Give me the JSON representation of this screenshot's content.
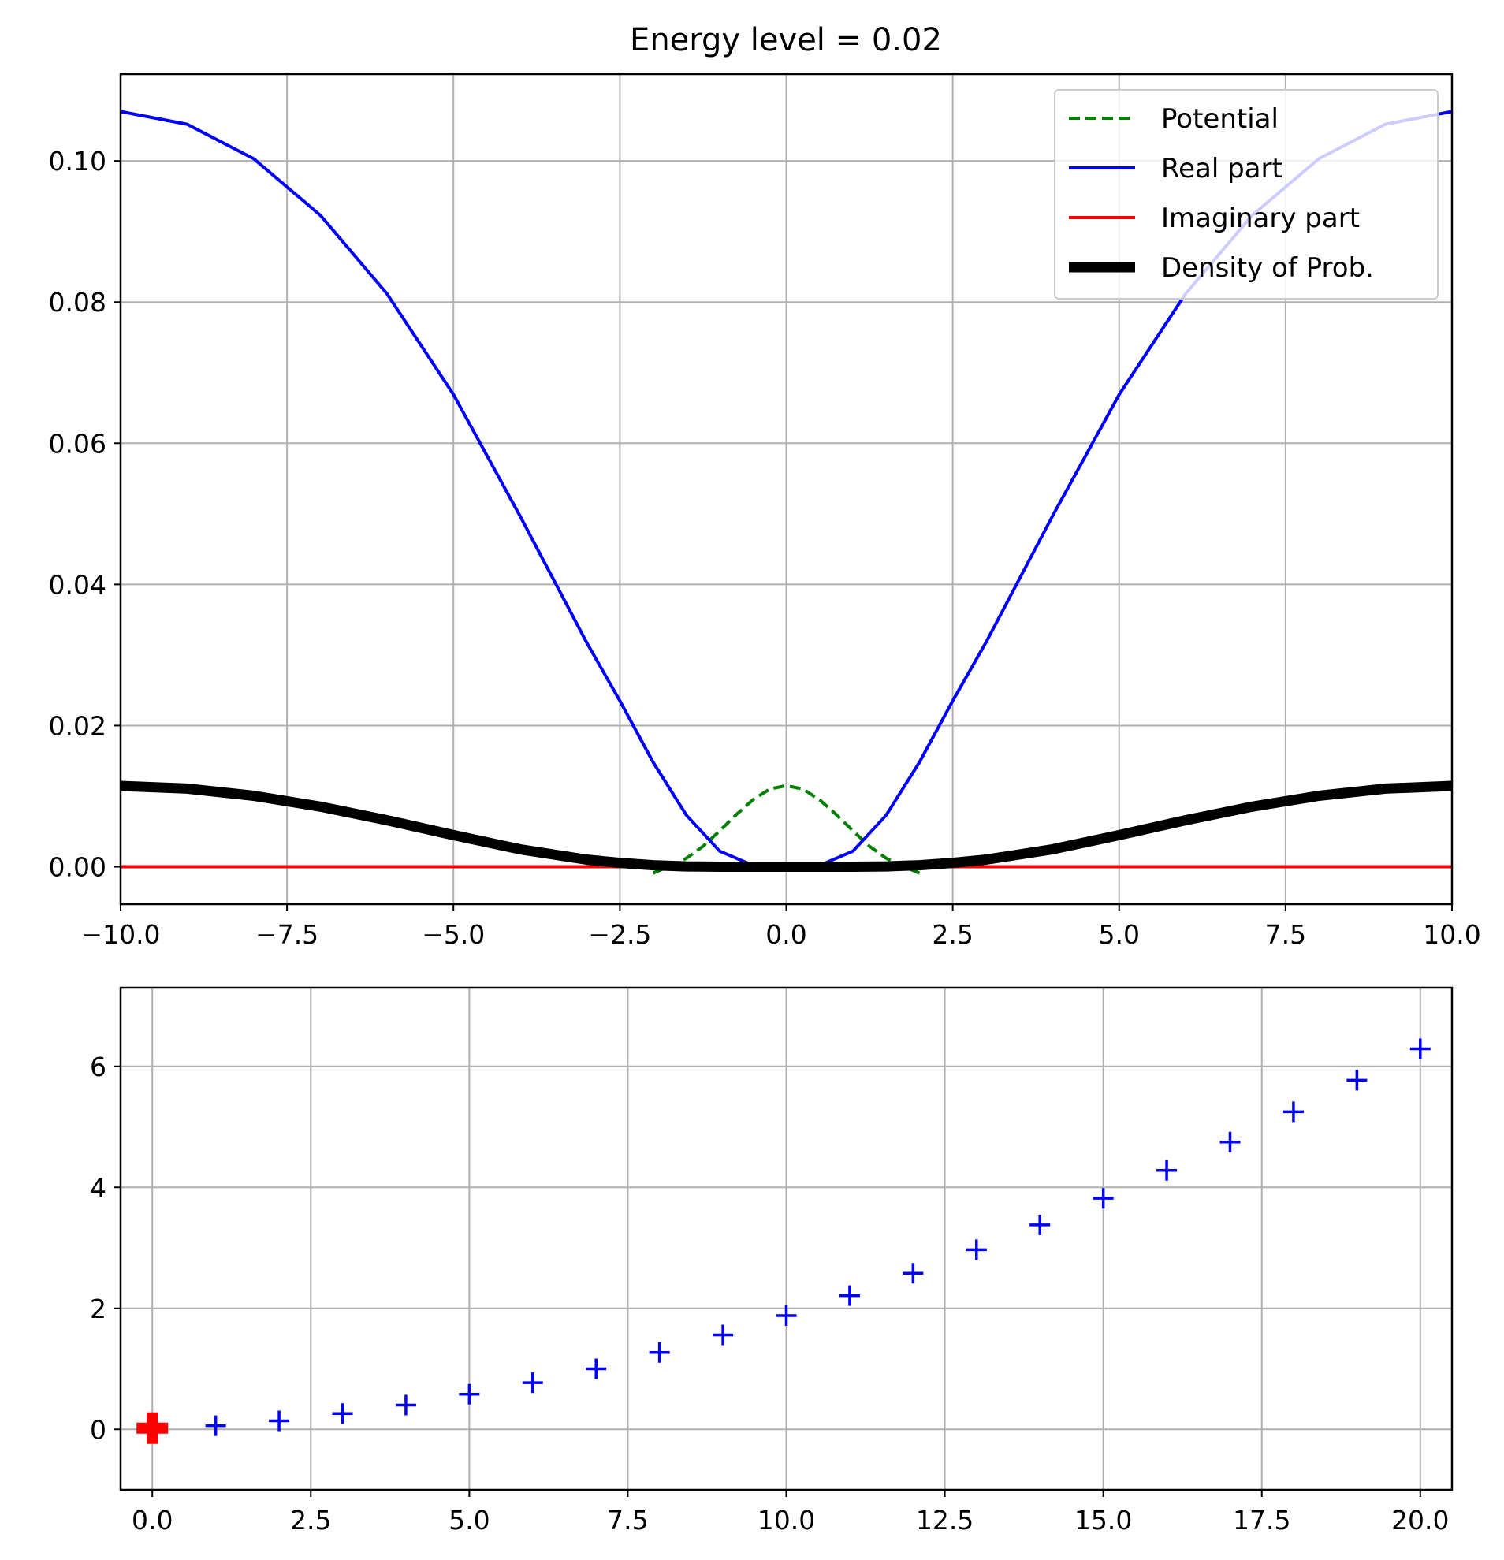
{
  "chart_data": [
    {
      "type": "line",
      "title": "Energy level = 0.02",
      "xlabel": "",
      "ylabel": "",
      "xlim": [
        -10,
        10
      ],
      "ylim": [
        -0.0053,
        0.1123
      ],
      "grid": true,
      "legend_position": "top-right",
      "xticks": [
        -10,
        -7.5,
        -5,
        -2.5,
        0,
        2.5,
        5,
        7.5,
        10
      ],
      "xtick_labels": [
        "−10.0",
        "−7.5",
        "−5.0",
        "−2.5",
        "0.0",
        "2.5",
        "5.0",
        "7.5",
        "10.0"
      ],
      "yticks": [
        0,
        0.02,
        0.04,
        0.06,
        0.08,
        0.1
      ],
      "ytick_labels": [
        "0.00",
        "0.02",
        "0.04",
        "0.06",
        "0.08",
        "0.10"
      ],
      "series": [
        {
          "name": "Potential",
          "color": "#008000",
          "style": "dashed",
          "x": [
            -2.0,
            -1.75,
            -1.5,
            -1.25,
            -1.0,
            -0.75,
            -0.5,
            -0.25,
            0.0,
            0.25,
            0.5,
            0.75,
            1.0,
            1.25,
            1.5,
            1.75,
            2.0
          ],
          "y": [
            -0.0009,
            0.0001,
            0.0012,
            0.0029,
            0.0051,
            0.0074,
            0.0095,
            0.011,
            0.0115,
            0.011,
            0.0095,
            0.0074,
            0.0051,
            0.0029,
            0.0012,
            0.0001,
            -0.0009
          ]
        },
        {
          "name": "Real part",
          "color": "#0000ff",
          "style": "solid",
          "x": [
            -10,
            -9,
            -8,
            -7,
            -6,
            -5,
            -4,
            -3,
            -2.5,
            -2,
            -1.5,
            -1,
            -0.5,
            0,
            0.5,
            1,
            1.5,
            2,
            2.5,
            3,
            4,
            5,
            6,
            7,
            8,
            9,
            10
          ],
          "y": [
            0.107,
            0.1052,
            0.1003,
            0.0923,
            0.0812,
            0.0669,
            0.0497,
            0.0318,
            0.0235,
            0.0148,
            0.0073,
            0.0022,
            0.0002,
            0.0,
            0.0002,
            0.0022,
            0.0073,
            0.0148,
            0.0235,
            0.0318,
            0.0497,
            0.0669,
            0.0812,
            0.0923,
            0.1003,
            0.1052,
            0.107
          ]
        },
        {
          "name": "Imaginary part",
          "color": "#ff0000",
          "style": "solid",
          "x": [
            -10,
            10
          ],
          "y": [
            0,
            0
          ]
        },
        {
          "name": "Density of Prob.",
          "color": "#000000",
          "style": "solid-thick",
          "x": [
            -10,
            -9,
            -8,
            -7,
            -6,
            -5,
            -4,
            -3,
            -2.5,
            -2,
            -1.5,
            -1,
            -0.5,
            0,
            0.5,
            1,
            1.5,
            2,
            2.5,
            3,
            4,
            5,
            6,
            7,
            8,
            9,
            10
          ],
          "y": [
            0.01145,
            0.01107,
            0.01006,
            0.00852,
            0.00659,
            0.00448,
            0.00247,
            0.00101,
            0.00055,
            0.00022,
            5e-05,
            0.0,
            0.0,
            0.0,
            0.0,
            0.0,
            5e-05,
            0.00022,
            0.00055,
            0.00101,
            0.00247,
            0.00448,
            0.00659,
            0.00852,
            0.01006,
            0.01107,
            0.01145
          ]
        }
      ]
    },
    {
      "type": "scatter",
      "title": "",
      "xlabel": "",
      "ylabel": "",
      "xlim": [
        -0.5,
        20.5
      ],
      "ylim": [
        -1.0,
        7.3
      ],
      "grid": true,
      "xticks": [
        0,
        2.5,
        5,
        7.5,
        10,
        12.5,
        15,
        17.5,
        20
      ],
      "xtick_labels": [
        "0.0",
        "2.5",
        "5.0",
        "7.5",
        "10.0",
        "12.5",
        "15.0",
        "17.5",
        "20.0"
      ],
      "yticks": [
        0,
        2,
        4,
        6
      ],
      "ytick_labels": [
        "0",
        "2",
        "4",
        "6"
      ],
      "series": [
        {
          "marker": "+",
          "color": "#0000ff",
          "x": [
            0,
            1,
            2,
            3,
            4,
            5,
            6,
            7,
            8,
            9,
            10,
            11,
            12,
            13,
            14,
            15,
            16,
            17,
            18,
            19,
            20
          ],
          "y": [
            0.02,
            0.06,
            0.14,
            0.26,
            0.4,
            0.58,
            0.77,
            1.0,
            1.27,
            1.56,
            1.88,
            2.21,
            2.58,
            2.97,
            3.38,
            3.82,
            4.28,
            4.75,
            5.25,
            5.77,
            6.29
          ]
        },
        {
          "marker": "P",
          "color": "#ff0000",
          "x": [
            0
          ],
          "y": [
            0.02
          ]
        }
      ]
    }
  ]
}
